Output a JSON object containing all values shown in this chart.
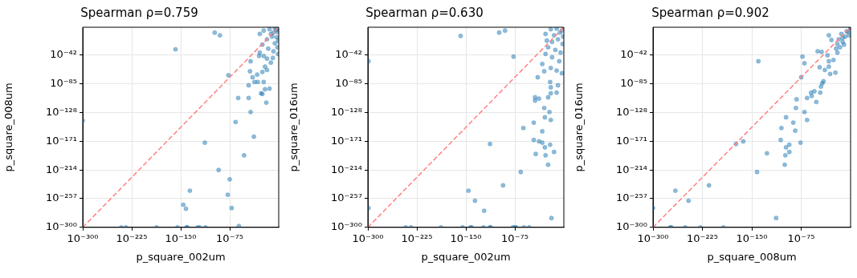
{
  "chart_data": [
    {
      "type": "scatter",
      "title": "Spearman ρ=0.759",
      "xlabel": "p_square_002um",
      "ylabel": "p_square_008um",
      "log": "xy",
      "grid": true,
      "marker": "circle",
      "xlim": [
        1e-300,
        1
      ],
      "ylim": [
        1e-300,
        1
      ],
      "xticks": [
        {
          "value": 1e-300,
          "label": "10⁻³⁰⁰"
        },
        {
          "value": 1e-225,
          "label": "10⁻²²⁵"
        },
        {
          "value": 1e-150,
          "label": "10⁻¹⁵⁰"
        },
        {
          "value": 1e-75,
          "label": "10⁻⁷⁵"
        }
      ],
      "yticks": [
        {
          "value": 1e-300,
          "label": "10⁻³⁰⁰"
        },
        {
          "value": 1e-257,
          "label": "10⁻²⁵⁷"
        },
        {
          "value": 1e-214,
          "label": "10⁻²¹⁴"
        },
        {
          "value": 1e-171,
          "label": "10⁻¹⁷¹"
        },
        {
          "value": 1e-128,
          "label": "10⁻¹²⁸"
        },
        {
          "value": 1e-85,
          "label": "10⁻⁸⁵"
        },
        {
          "value": 1e-42,
          "label": "10⁻⁴²"
        }
      ],
      "series": [
        {
          "type": "scatter",
          "color": "#1f77b4",
          "x": [
            1e-98,
            1e-90,
            1e-158,
            1e-300,
            1e-77,
            1e-43,
            1e-44,
            1e-33,
            1e-40,
            1e-46,
            1e-37,
            1e-32,
            1e-23,
            1e-21,
            1e-14,
            1e-27,
            1e-25,
            1e-62,
            1e-46,
            1e-19,
            1e-43,
            1e-66,
            1e-38,
            1e-113,
            1e-53,
            1e-92,
            1e-75,
            1e-136,
            1e-78,
            1e-146,
            1e-142,
            1e-72,
            1e-61,
            1e-241,
            1e-234,
            1e-187,
            1e-155,
            1e-141,
            1e-140,
            1e-124,
            1e-121,
            1e-112,
            1e-29,
            1e-23,
            1e-14,
            1e-06,
            0.01,
            1e-10,
            1e-18,
            1e-25,
            1e-16,
            1e-06,
            0.01,
            1e-29,
            1e-30,
            1e-23,
            1e-18,
            1e-09,
            1e-12,
            1e-21,
            1e-18,
            1e-25,
            1,
            0.0001,
            1e-08,
            1e-12,
            0.001,
            0.1,
            1e-08,
            0.1
          ],
          "values": [
            1e-08,
            1e-12,
            1e-33,
            1e-140,
            1e-72,
            1e-51,
            1e-66,
            1e-71,
            1e-75,
            1e-87,
            1e-82,
            1e-82,
            1e-82,
            1e-93,
            1e-92,
            1e-99,
            1e-100,
            1e-106,
            1e-106,
            1e-113,
            1e-127,
            1e-142,
            1e-164,
            1e-173,
            1e-192,
            1e-214,
            1e-228,
            1e-245,
            1e-251,
            1e-266,
            1e-272,
            1e-271,
            1e-298,
            1e-300,
            1e-300,
            1e-300,
            1e-300,
            1e-300,
            1e-300,
            1e-300,
            1e-300,
            1e-300,
            1e-10,
            1e-05,
            0.001,
            0.1,
            1e-07,
            1e-14,
            1e-18,
            1e-26,
            1e-32,
            1e-24,
            1e-30,
            1e-38,
            1e-43,
            1e-43,
            1e-47,
            1e-46,
            1e-53,
            1e-59,
            1e-64,
            1e-67,
            0.001,
            0.0001,
            1e-08,
            1e-10,
            1e-15,
            1e-20,
            1e-36,
            1e-40
          ]
        },
        {
          "type": "line",
          "color": "#ff8080",
          "line_style": "dashed",
          "marker": "none",
          "x": [
            1e-300,
            1
          ],
          "values": [
            1e-300,
            1
          ]
        }
      ]
    },
    {
      "type": "scatter",
      "title": "Spearman ρ=0.630",
      "xlabel": "p_square_002um",
      "ylabel": "p_square_016um",
      "log": "xy",
      "grid": true,
      "marker": "circle",
      "xlim": [
        1e-300,
        1
      ],
      "ylim": [
        1e-300,
        1
      ],
      "xticks": [
        {
          "value": 1e-300,
          "label": "10⁻³⁰⁰"
        },
        {
          "value": 1e-225,
          "label": "10⁻²²⁵"
        },
        {
          "value": 1e-150,
          "label": "10⁻¹⁵⁰"
        },
        {
          "value": 1e-75,
          "label": "10⁻⁷⁵"
        }
      ],
      "yticks": [
        {
          "value": 1e-300,
          "label": "10⁻³⁰⁰"
        },
        {
          "value": 1e-257,
          "label": "10⁻²⁵⁷"
        },
        {
          "value": 1e-214,
          "label": "10⁻²¹⁴"
        },
        {
          "value": 1e-171,
          "label": "10⁻¹⁷¹"
        },
        {
          "value": 1e-128,
          "label": "10⁻¹²⁸"
        },
        {
          "value": 1e-85,
          "label": "10⁻⁸⁵"
        },
        {
          "value": 1e-42,
          "label": "10⁻⁴²"
        }
      ],
      "series": [
        {
          "type": "scatter",
          "color": "#1f77b4",
          "x": [
            1e-158,
            1e-99,
            1e-90,
            1e-77,
            1e-299,
            1e-299,
            1e-33,
            1e-40,
            1e-30,
            1e-21,
            1e-09,
            1e-20,
            1e-11,
            1e-20,
            1e-44,
            1e-38,
            1e-44,
            1e-24,
            1e-30,
            1e-22,
            1e-29,
            1e-20,
            1e-46,
            1e-62,
            1e-33,
            1e-46,
            1e-38,
            1e-33,
            1e-21,
            1e-29,
            1e-43,
            1e-28,
            1e-15,
            1e-24,
            1e-66,
            1e-93,
            1e-113,
            1e-146,
            1e-136,
            1e-122,
            1e-19,
            1e-242,
            1e-234,
            1e-188,
            1e-155,
            1e-143,
            1e-141,
            1e-123,
            1e-113,
            1e-112,
            1e-78,
            1e-75,
            1e-73,
            1e-61,
            1e-53,
            1e-300,
            1e-28,
            1e-20,
            1e-11,
            0.001,
            0.1,
            1e-09,
            1e-18,
            1e-24,
            1e-13,
            1e-05,
            1e-28,
            1e-18,
            1e-07,
            1e-20,
            1e-11,
            0.001,
            1,
            1e-06,
            1e-15,
            0.01,
            1e-26
          ],
          "values": [
            1e-13,
            1e-08,
            1e-05,
            1e-44,
            1e-51,
            1e-271,
            1e-55,
            1e-75,
            1e-66,
            1e-82,
            1e-87,
            1e-90,
            1e-98,
            1e-99,
            1e-105,
            1e-107,
            1e-110,
            1e-105,
            1e-121,
            1e-127,
            1e-135,
            1e-139,
            1e-143,
            1e-151,
            1e-156,
            1e-169,
            1e-171,
            1e-173,
            1e-176,
            1e-180,
            1e-190,
            1e-192,
            1e-187,
            1e-206,
            1e-217,
            1e-237,
            1e-175,
            1e-245,
            1e-260,
            1e-275,
            1e-286,
            1e-300,
            1e-300,
            1e-300,
            1e-300,
            1e-300,
            1e-300,
            1e-300,
            1e-300,
            1e-300,
            1e-300,
            1e-300,
            1e-300,
            1e-300,
            1e-300,
            1e-300,
            1e-10,
            0.001,
            0.01,
            1e-05,
            1e-14,
            1e-18,
            1e-22,
            1e-30,
            1e-34,
            1e-38,
            1e-40,
            1e-45,
            1e-51,
            1e-61,
            1e-65,
            1e-69,
            1,
            1e-08,
            1e-12,
            1e-25,
            1e-20
          ]
        },
        {
          "type": "line",
          "color": "#ff8080",
          "line_style": "dashed",
          "marker": "none",
          "x": [
            1e-300,
            1
          ],
          "values": [
            1e-300,
            1
          ]
        }
      ]
    },
    {
      "type": "scatter",
      "title": "Spearman ρ=0.902",
      "xlabel": "p_square_008um",
      "ylabel": "p_square_016um",
      "log": "xy",
      "grid": true,
      "marker": "circle",
      "xlim": [
        1e-300,
        1
      ],
      "ylim": [
        1e-300,
        1
      ],
      "xticks": [
        {
          "value": 1e-300,
          "label": "10⁻³⁰⁰"
        },
        {
          "value": 1e-225,
          "label": "10⁻²²⁵"
        },
        {
          "value": 1e-150,
          "label": "10⁻¹⁵⁰"
        },
        {
          "value": 1e-75,
          "label": "10⁻⁷⁵"
        }
      ],
      "yticks": [
        {
          "value": 1e-300,
          "label": "10⁻³⁰⁰"
        },
        {
          "value": 1e-257,
          "label": "10⁻²⁵⁷"
        },
        {
          "value": 1e-214,
          "label": "10⁻²¹⁴"
        },
        {
          "value": 1e-171,
          "label": "10⁻¹⁷¹"
        },
        {
          "value": 1e-128,
          "label": "10⁻¹²⁸"
        },
        {
          "value": 1e-85,
          "label": "10⁻⁸⁵"
        },
        {
          "value": 1e-42,
          "label": "10⁻⁴²"
        }
      ],
      "series": [
        {
          "type": "scatter",
          "color": "#1f77b4",
          "x": [
            1e-140,
            1e-174,
            1e-163,
            1e-127,
            1e-142,
            1e-215,
            1e-266,
            1e-246,
            1e-300,
            1e-113,
            1e-274,
            1e-272,
            1e-251,
            1e-228,
            1e-193,
            1e-300,
            1e-98,
            1e-105,
            1e-87,
            1e-84,
            1e-82,
            1e-83,
            1e-70,
            1e-66,
            1e-76,
            1e-106,
            1e-98,
            1e-93,
            1e-93,
            1e-99,
            1e-100,
            1e-73,
            1e-70,
            1e-75,
            1e-66,
            1e-59,
            1e-60,
            1e-55,
            1e-52,
            1e-46,
            1e-45,
            1e-43,
            1e-41,
            1e-47,
            1e-39,
            1e-33,
            1e-23,
            1e-31,
            1e-50,
            1e-44,
            1e-35,
            1e-33,
            1e-29,
            1e-22,
            1e-33,
            1e-26,
            1e-20,
            1e-16,
            1e-12,
            1e-08,
            0.0001,
            1,
            1e-18,
            1e-14,
            1e-10,
            0.01,
            1,
            1e-06,
            1e-12,
            1e-20
          ],
          "values": [
            1e-51,
            1e-175,
            1e-171,
            1e-189,
            1e-217,
            1e-237,
            1e-245,
            1e-260,
            1e-271,
            1e-286,
            1e-300,
            1e-300,
            1e-300,
            1e-300,
            1e-300,
            1e-300,
            1e-135,
            1e-151,
            1e-143,
            1e-155,
            1e-108,
            1e-121,
            1e-127,
            1e-139,
            1e-173,
            1e-169,
            1e-180,
            1e-176,
            1e-187,
            1e-192,
            1e-206,
            1e-44,
            1e-54,
            1e-75,
            1e-106,
            1e-103,
            1e-98,
            1e-96,
            1e-112,
            1e-98,
            1e-89,
            1e-84,
            1e-81,
            1e-60,
            1e-64,
            1e-59,
            1e-68,
            1e-70,
            1e-36,
            1e-37,
            1e-42,
            1e-12,
            1e-19,
            1e-32,
            1e-51,
            1e-49,
            1e-38,
            1e-30,
            1e-22,
            1e-14,
            1e-07,
            0.01,
            1e-18,
            1e-10,
            1e-26,
            1e-12,
            1,
            1e-06,
            1e-16,
            1e-25
          ]
        },
        {
          "type": "line",
          "color": "#ff8080",
          "line_style": "dashed",
          "marker": "none",
          "x": [
            1e-300,
            1
          ],
          "values": [
            1e-300,
            1
          ]
        }
      ]
    }
  ]
}
